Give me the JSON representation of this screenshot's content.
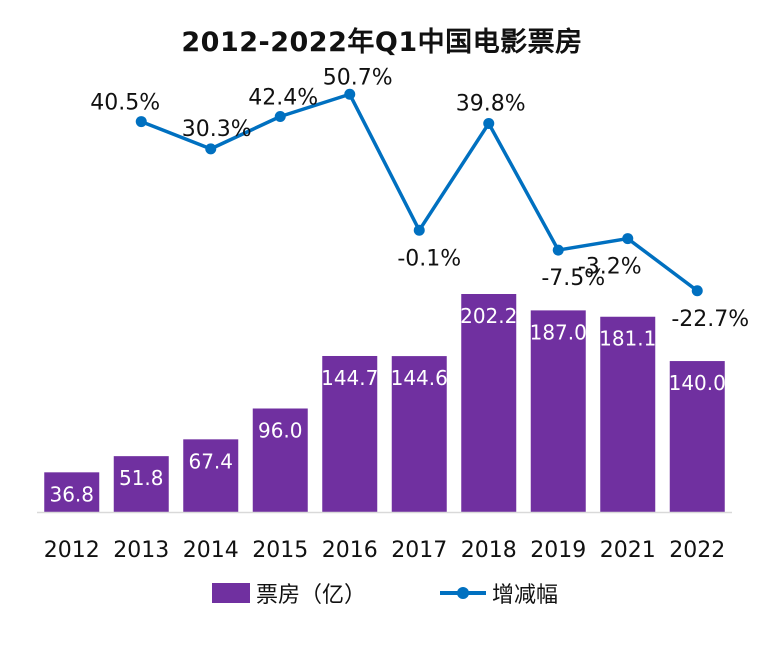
{
  "chart_data": {
    "type": "bar+line",
    "title": "2012-2022年Q1中国电影票房",
    "categories": [
      "2012",
      "2013",
      "2014",
      "2015",
      "2016",
      "2017",
      "2018",
      "2019",
      "2021",
      "2022"
    ],
    "series": [
      {
        "name": "票房（亿）",
        "type": "bar",
        "values": [
          36.8,
          51.8,
          67.4,
          96.0,
          144.7,
          144.6,
          202.2,
          187.0,
          181.1,
          140.0
        ],
        "labels": [
          "36.8",
          "51.8",
          "67.4",
          "96.0",
          "144.7",
          "144.6",
          "202.2",
          "187.0",
          "181.1",
          "140.0"
        ]
      },
      {
        "name": "增减幅",
        "type": "line",
        "values": [
          null,
          40.5,
          30.3,
          42.4,
          50.7,
          -0.1,
          39.8,
          -7.5,
          -3.2,
          -22.7
        ],
        "labels": [
          null,
          "40.5%",
          "30.3%",
          "42.4%",
          "50.7%",
          "-0.1%",
          "39.8%",
          "-7.5%",
          "-3.2%",
          "-22.7%"
        ]
      }
    ],
    "bar_ylim": [
      0,
      220
    ],
    "line_ylim": [
      -35,
      70
    ],
    "legend_position": "bottom",
    "grid": false
  },
  "legend": {
    "bar_label": "票房（亿）",
    "line_label": "增减幅"
  },
  "colors": {
    "bar": "#7030A0",
    "line": "#0070C0",
    "axis": "#d9d9d9",
    "text": "#111111",
    "bar_label": "#ffffff"
  }
}
